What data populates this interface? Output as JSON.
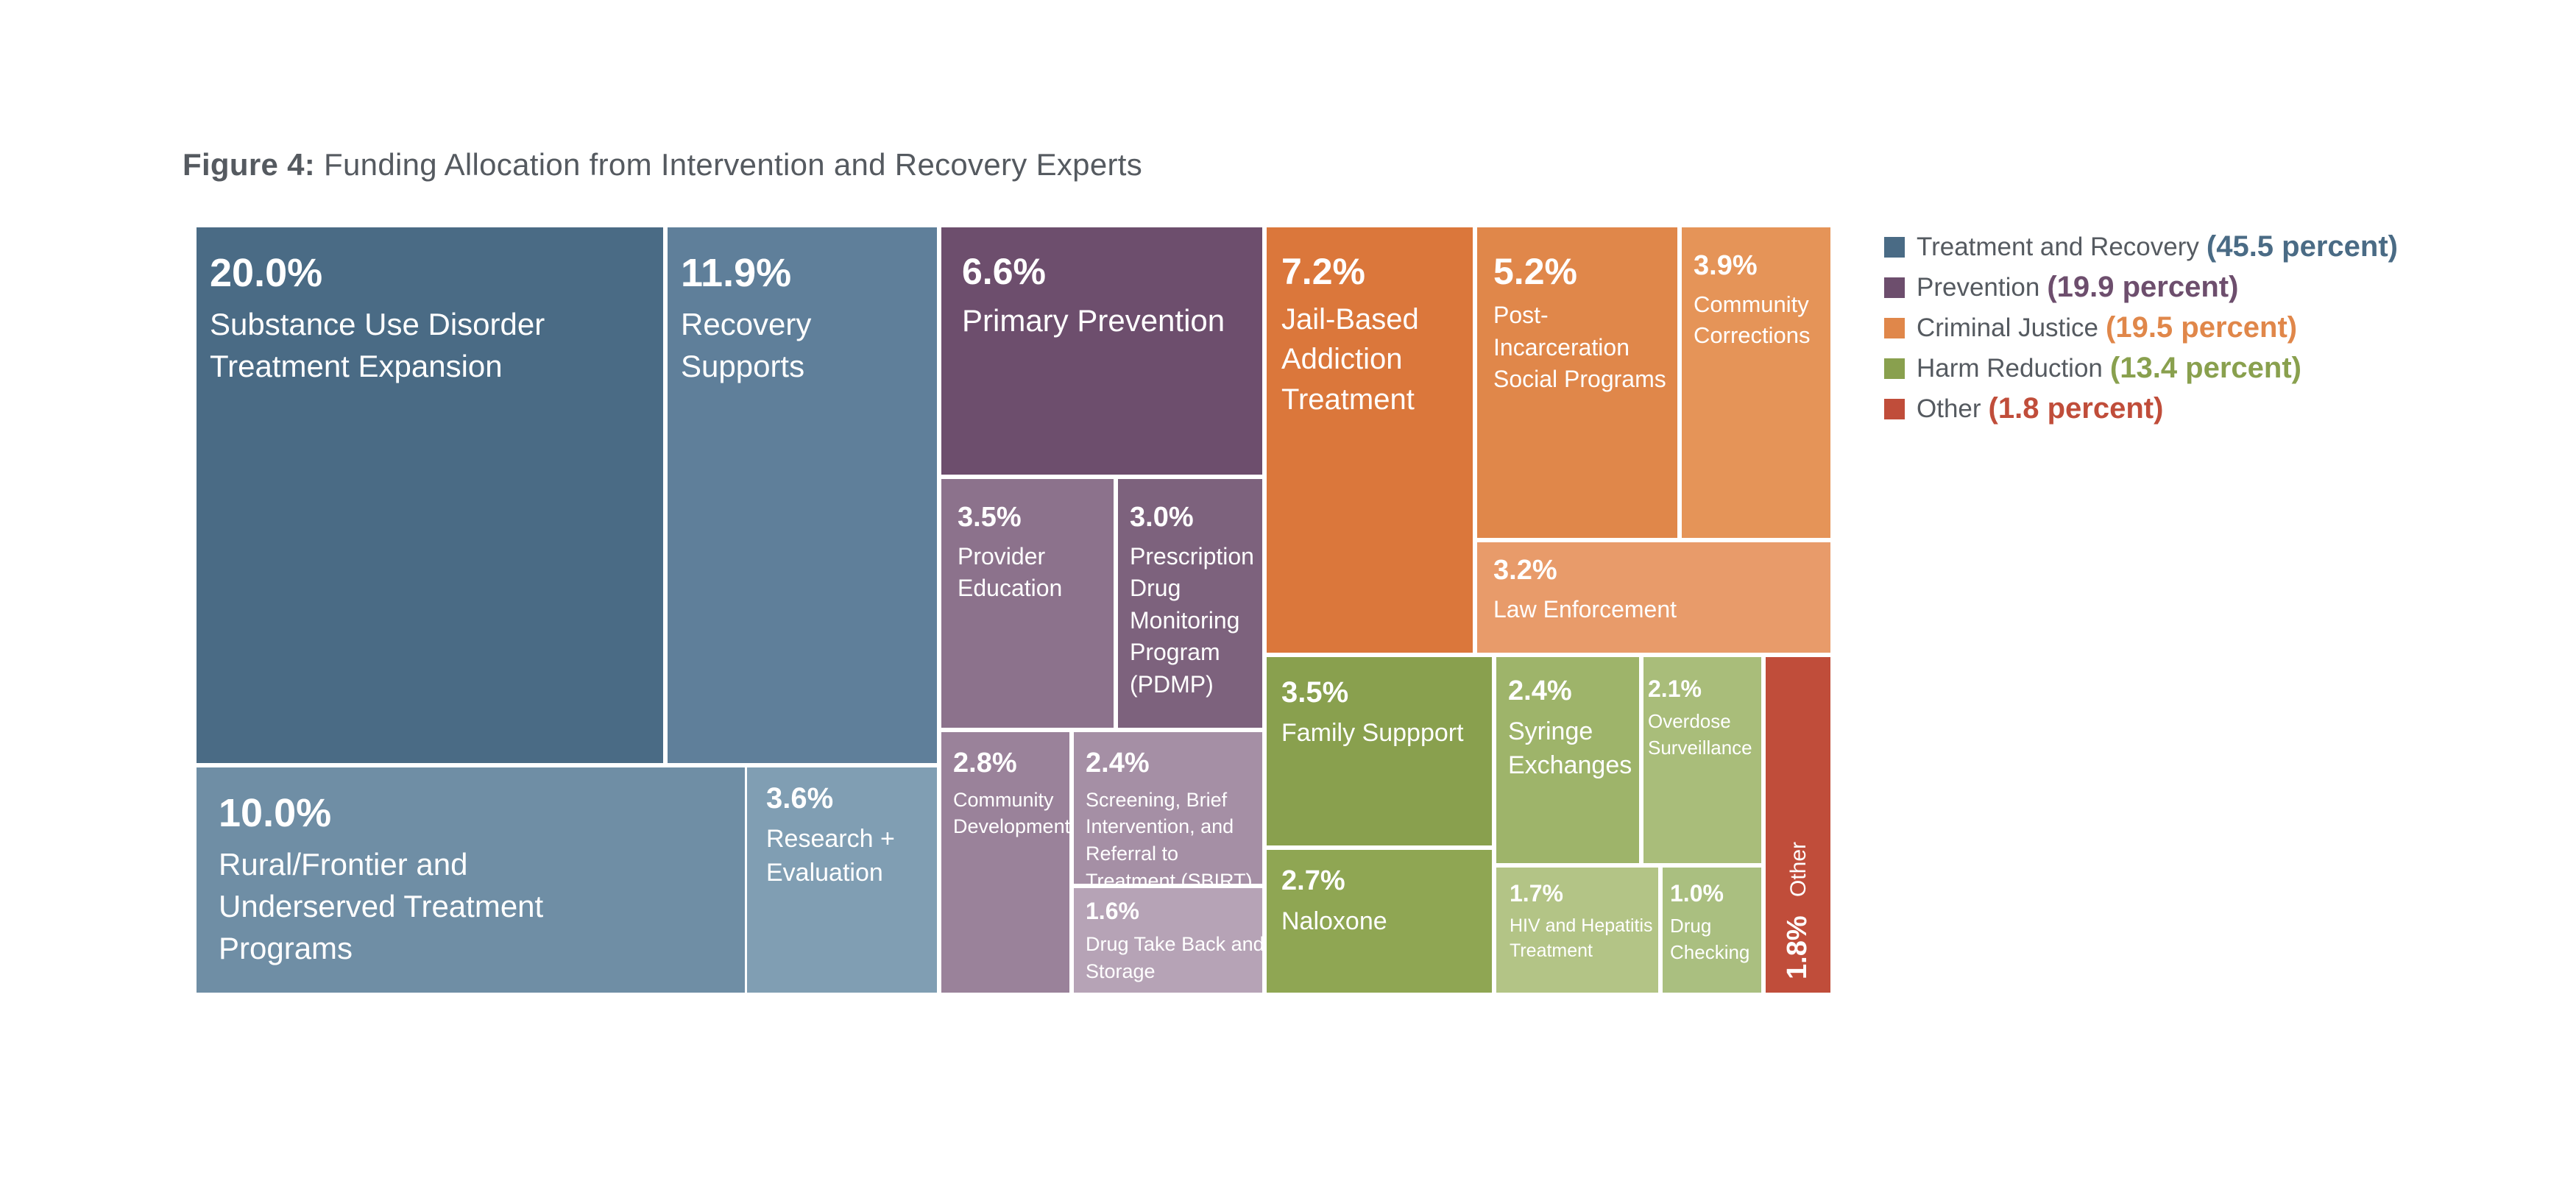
{
  "chart_data": {
    "type": "treemap",
    "title_lead": "Figure 4:",
    "title": "Funding Allocation from Intervention and Recovery Experts",
    "legend": [
      {
        "label": "Treatment and Recovery",
        "value": "(45.5 percent)",
        "color": "#4a6b85"
      },
      {
        "label": "Prevention",
        "value": "(19.9 percent)",
        "color": "#6d4e6d"
      },
      {
        "label": "Criminal Justice",
        "value": "(19.5 percent)",
        "color": "#e0874a"
      },
      {
        "label": "Harm Reduction",
        "value": "(13.4 percent)",
        "color": "#89a04e"
      },
      {
        "label": "Other",
        "value": "(1.8 percent)",
        "color": "#c04d3a"
      }
    ],
    "categories": [
      {
        "category": "Treatment and Recovery",
        "items": [
          {
            "pct": "20.0%",
            "label": "Substance Use Disorder Treatment Expansion",
            "value": 20.0,
            "color": "#4a6b85"
          },
          {
            "pct": "11.9%",
            "label": "Recovery Supports",
            "value": 11.9,
            "color": "#5f7f9a"
          },
          {
            "pct": "10.0%",
            "label": "Rural/Frontier and Underserved Treatment Programs",
            "value": 10.0,
            "color": "#6f8ea5"
          },
          {
            "pct": "3.6%",
            "label": "Research + Evaluation",
            "value": 3.6,
            "color": "#809eb3"
          }
        ]
      },
      {
        "category": "Prevention",
        "items": [
          {
            "pct": "6.6%",
            "label": "Primary Prevention",
            "value": 6.6,
            "color": "#6d4e6d"
          },
          {
            "pct": "3.5%",
            "label": "Provider Education",
            "value": 3.5,
            "color": "#8c728c"
          },
          {
            "pct": "3.0%",
            "label": "Prescription Drug Monitoring Program (PDMP)",
            "value": 3.0,
            "color": "#7d627d"
          },
          {
            "pct": "2.8%",
            "label": "Community Development",
            "value": 2.8,
            "color": "#9a829a"
          },
          {
            "pct": "2.4%",
            "label": "Screening, Brief Intervention, and Referral to Treatment (SBIRT)",
            "value": 2.4,
            "color": "#a58fa5"
          },
          {
            "pct": "1.6%",
            "label": "Drug Take Back and Storage",
            "value": 1.6,
            "color": "#b6a3b6"
          }
        ]
      },
      {
        "category": "Criminal Justice",
        "items": [
          {
            "pct": "7.2%",
            "label": "Jail-Based Addiction Treatment",
            "value": 7.2,
            "color": "#db773b"
          },
          {
            "pct": "5.2%",
            "label": "Post-Incarceration Social Programs",
            "value": 5.2,
            "color": "#e0874a"
          },
          {
            "pct": "3.9%",
            "label": "Community Corrections",
            "value": 3.9,
            "color": "#e59458"
          },
          {
            "pct": "3.2%",
            "label": "Law Enforcement",
            "value": 3.2,
            "color": "#e89b6a"
          }
        ]
      },
      {
        "category": "Harm Reduction",
        "items": [
          {
            "pct": "3.5%",
            "label": "Family Suppport",
            "value": 3.5,
            "color": "#89a04e"
          },
          {
            "pct": "2.7%",
            "label": "Naloxone",
            "value": 2.7,
            "color": "#8fa653"
          },
          {
            "pct": "2.4%",
            "label": "Syringe Exchanges",
            "value": 2.4,
            "color": "#9eb46a"
          },
          {
            "pct": "2.1%",
            "label": "Overdose Surveillance",
            "value": 2.1,
            "color": "#a9bd7a"
          },
          {
            "pct": "1.7%",
            "label": "HIV and Hepatitis Treatment",
            "value": 1.7,
            "color": "#b3c486"
          },
          {
            "pct": "1.0%",
            "label": "Drug Checking",
            "value": 1.0,
            "color": "#aabf80"
          }
        ]
      },
      {
        "category": "Other",
        "items": [
          {
            "pct": "1.8%",
            "label": "Other",
            "value": 1.8,
            "color": "#c04d3a"
          }
        ]
      }
    ]
  }
}
